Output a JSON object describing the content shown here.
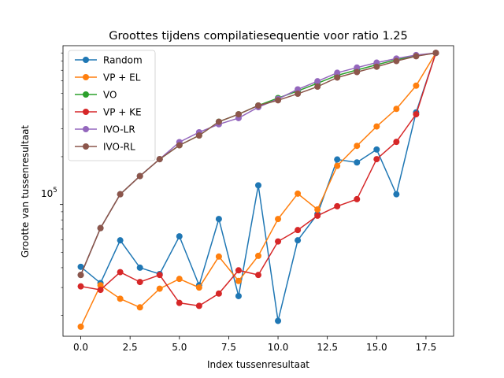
{
  "chart_data": {
    "type": "line",
    "title": "Groottes tijdens compilatiesequentie voor ratio 1.25",
    "xlabel": "Index tussenresultaat",
    "ylabel": "Grootte van tussenresultaat",
    "yscale": "log",
    "xlim": [
      -0.9,
      18.9
    ],
    "ylim": [
      14800,
      1000000
    ],
    "x_ticks": [
      0,
      2.5,
      5,
      7.5,
      10,
      12.5,
      15,
      17.5
    ],
    "x_tick_labels": [
      "0.0",
      "2.5",
      "5.0",
      "7.5",
      "10.0",
      "12.5",
      "15.0",
      "17.5"
    ],
    "y_ticks": [
      100000
    ],
    "y_tick_label_base": "10",
    "y_tick_label_exp": "5",
    "grid": false,
    "legend_position": "top-left",
    "x": [
      0,
      1,
      2,
      3,
      4,
      5,
      6,
      7,
      8,
      9,
      10,
      11,
      12,
      13,
      14,
      15,
      16,
      17,
      18
    ],
    "series": [
      {
        "name": "Random",
        "color": "#1f77b4",
        "values": [
          40500,
          32000,
          59500,
          40000,
          36500,
          63000,
          31000,
          81000,
          26500,
          132000,
          18500,
          59500,
          87000,
          192000,
          184000,
          222000,
          116000,
          380000,
          900000
        ]
      },
      {
        "name": "VP + EL",
        "color": "#ff7f0e",
        "values": [
          17000,
          31000,
          25500,
          22500,
          29500,
          34000,
          30000,
          47000,
          33000,
          47500,
          81000,
          117000,
          93000,
          175000,
          234000,
          310000,
          400000,
          560000,
          900000
        ]
      },
      {
        "name": "VO",
        "color": "#2ca02c",
        "values": [
          36000,
          71000,
          116000,
          151000,
          193000,
          236000,
          272000,
          332000,
          370000,
          420000,
          468000,
          518000,
          580000,
          650000,
          703000,
          758000,
          816000,
          863000,
          900000
        ]
      },
      {
        "name": "VP + KE",
        "color": "#d62728",
        "values": [
          30500,
          29000,
          37500,
          32500,
          36000,
          24000,
          23000,
          27500,
          38500,
          36000,
          58500,
          69000,
          85000,
          97500,
          108000,
          193000,
          248000,
          370000,
          900000
        ]
      },
      {
        "name": "IVO-LR",
        "color": "#9467bd",
        "values": [
          36000,
          71000,
          116000,
          151000,
          193000,
          247000,
          285000,
          320000,
          350000,
          410000,
          462000,
          531000,
          597000,
          675000,
          728000,
          782000,
          830000,
          873000,
          900000
        ]
      },
      {
        "name": "IVO-RL",
        "color": "#8c564b",
        "values": [
          36000,
          71000,
          116000,
          151000,
          193000,
          236000,
          272000,
          332000,
          370000,
          420000,
          453000,
          498000,
          552000,
          630000,
          682000,
          737000,
          800000,
          858000,
          900000
        ]
      }
    ]
  }
}
